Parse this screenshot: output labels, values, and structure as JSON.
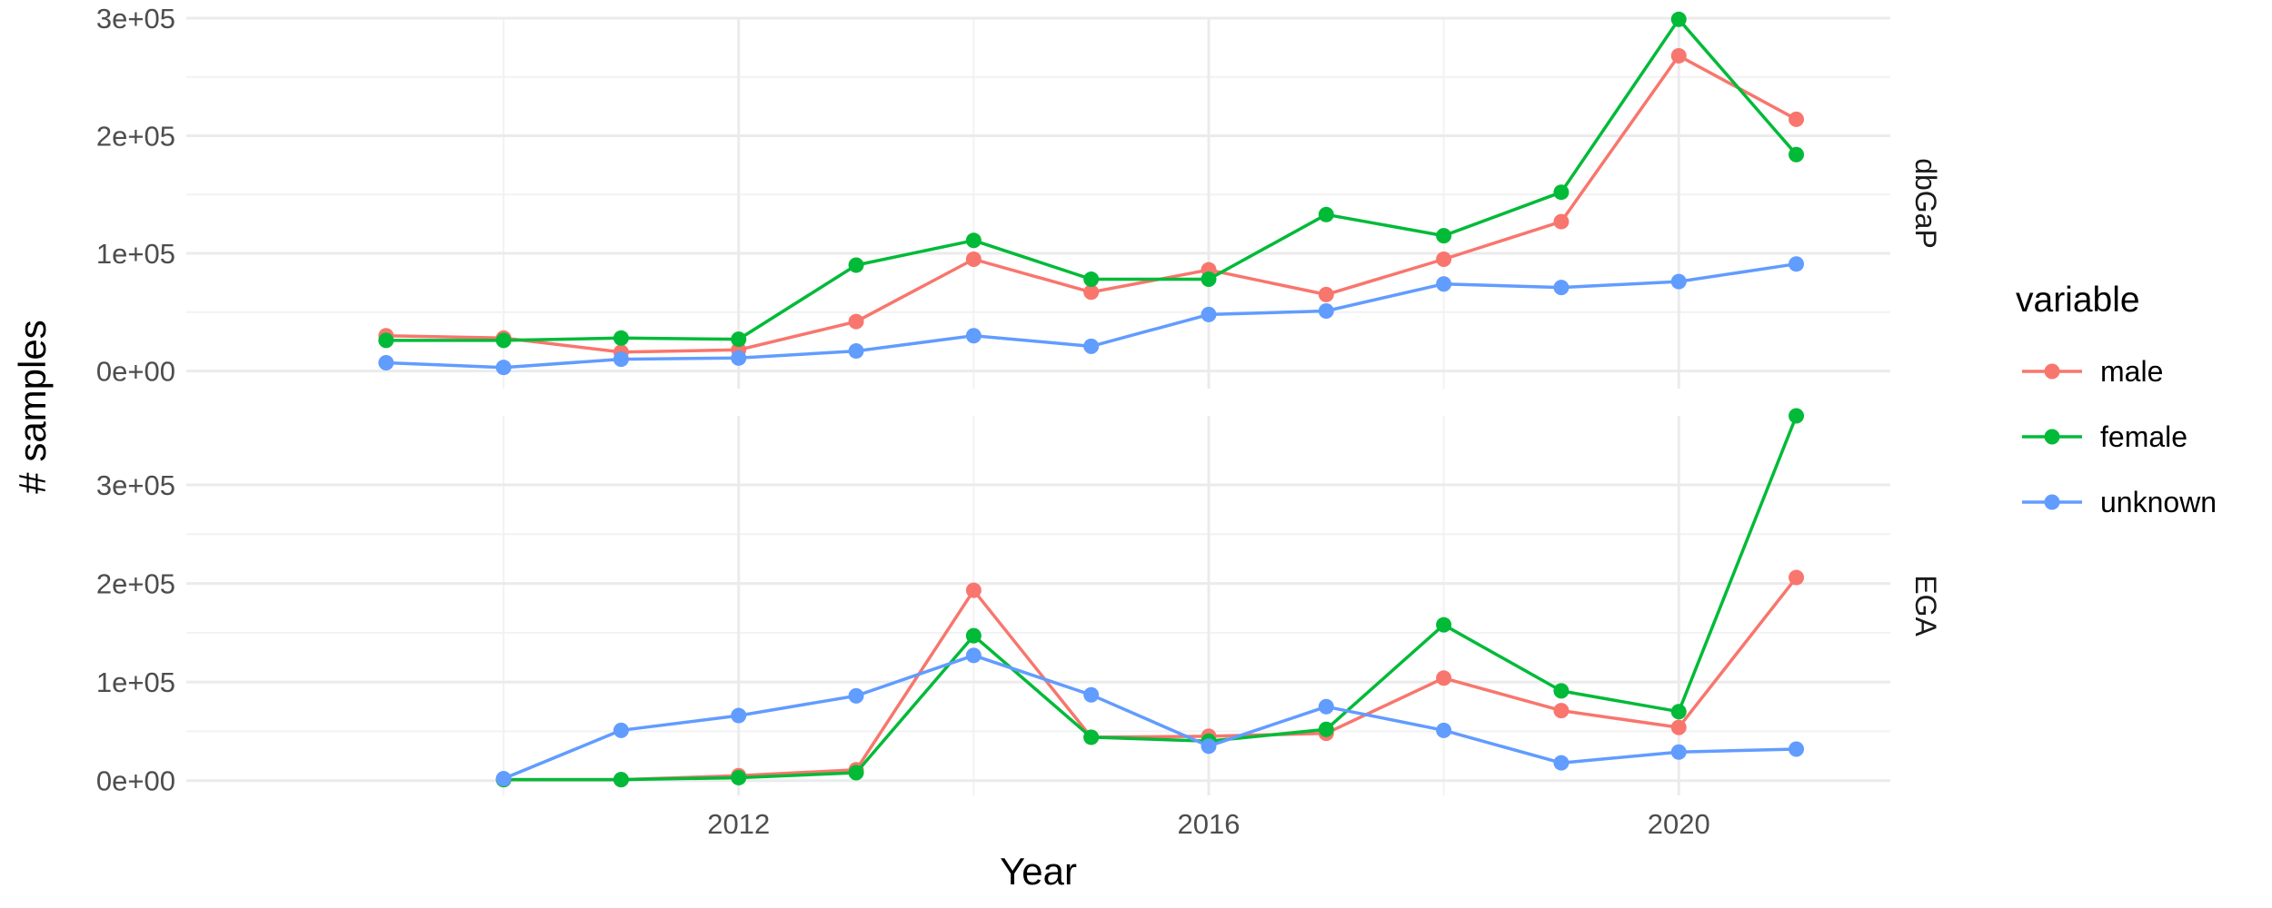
{
  "chart_data": {
    "type": "line",
    "xlabel": "Year",
    "ylabel": "# samples",
    "x_ticks": [
      2012,
      2016,
      2020
    ],
    "xlim": [
      2007.3,
      2021.8
    ],
    "legend": {
      "title": "variable",
      "position": "right",
      "entries": [
        "male",
        "female",
        "unknown"
      ]
    },
    "colors": {
      "male": "#F8766D",
      "female": "#00BA38",
      "unknown": "#619CFF"
    },
    "grid": true,
    "panels": [
      {
        "name": "dbGaP",
        "ylim": [
          -15000,
          300000
        ],
        "y_ticks": [
          0,
          100000,
          200000,
          300000
        ],
        "y_tick_labels": [
          "0e+00",
          "1e+05",
          "2e+05",
          "3e+05"
        ],
        "series": [
          {
            "name": "male",
            "x": [
              2009,
              2010,
              2011,
              2012,
              2013,
              2014,
              2015,
              2016,
              2017,
              2018,
              2019,
              2020,
              2021
            ],
            "y": [
              30000,
              28000,
              16000,
              18000,
              42000,
              95000,
              67000,
              86000,
              65000,
              95000,
              127000,
              268000,
              214000
            ]
          },
          {
            "name": "female",
            "x": [
              2009,
              2010,
              2011,
              2012,
              2013,
              2014,
              2015,
              2016,
              2017,
              2018,
              2019,
              2020,
              2021
            ],
            "y": [
              26000,
              26000,
              28000,
              27000,
              90000,
              111000,
              78000,
              78000,
              133000,
              115000,
              152000,
              299000,
              184000
            ]
          },
          {
            "name": "unknown",
            "x": [
              2009,
              2010,
              2011,
              2012,
              2013,
              2014,
              2015,
              2016,
              2017,
              2018,
              2019,
              2020,
              2021
            ],
            "y": [
              7000,
              3000,
              10000,
              11000,
              17000,
              30000,
              21000,
              48000,
              51000,
              74000,
              71000,
              76000,
              91000
            ]
          }
        ]
      },
      {
        "name": "EGA",
        "ylim": [
          -15000,
          370000
        ],
        "y_ticks": [
          0,
          100000,
          200000,
          300000
        ],
        "y_tick_labels": [
          "0e+00",
          "1e+05",
          "2e+05",
          "3e+05"
        ],
        "series": [
          {
            "name": "male",
            "x": [
              2010,
              2011,
              2012,
              2013,
              2014,
              2015,
              2016,
              2017,
              2018,
              2019,
              2020,
              2021
            ],
            "y": [
              1000,
              1000,
              5000,
              11000,
              193000,
              44000,
              45000,
              48000,
              104000,
              71000,
              54000,
              206000
            ]
          },
          {
            "name": "female",
            "x": [
              2010,
              2011,
              2012,
              2013,
              2014,
              2015,
              2016,
              2017,
              2018,
              2019,
              2020,
              2021
            ],
            "y": [
              1000,
              1000,
              3000,
              8000,
              147000,
              44000,
              40000,
              52000,
              158000,
              91000,
              70000,
              370000
            ]
          },
          {
            "name": "unknown",
            "x": [
              2010,
              2011,
              2012,
              2013,
              2014,
              2015,
              2016,
              2017,
              2018,
              2019,
              2020,
              2021
            ],
            "y": [
              2000,
              51000,
              66000,
              86000,
              127000,
              87000,
              35000,
              75000,
              51000,
              18000,
              29000,
              32000
            ]
          }
        ]
      }
    ]
  }
}
